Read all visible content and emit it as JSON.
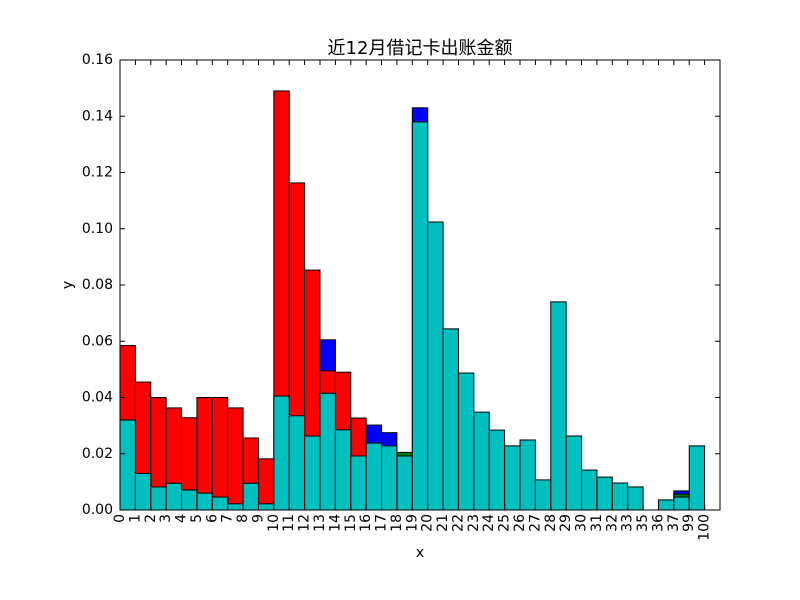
{
  "chart_data": {
    "type": "bar",
    "overlay": true,
    "stacked": false,
    "grid": false,
    "title": "近12月借记卡出账金额",
    "xlabel": "x",
    "ylabel": "y",
    "categories": [
      "0",
      "1",
      "2",
      "3",
      "4",
      "5",
      "6",
      "7",
      "8",
      "9",
      "10",
      "11",
      "12",
      "13",
      "14",
      "15",
      "16",
      "17",
      "18",
      "19",
      "20",
      "21",
      "22",
      "23",
      "24",
      "25",
      "26",
      "27",
      "28",
      "29",
      "30",
      "31",
      "32",
      "33",
      "35",
      "36",
      "37",
      "99",
      "100"
    ],
    "ylim": [
      0,
      0.16
    ],
    "yticks": [
      0,
      0.02,
      0.04,
      0.06,
      0.08,
      0.1,
      0.12,
      0.14,
      0.16
    ],
    "ytick_labels": [
      "0.00",
      "0.02",
      "0.04",
      "0.06",
      "0.08",
      "0.10",
      "0.12",
      "0.14",
      "0.16"
    ],
    "edge_color": "#000000",
    "series": [
      {
        "color": "#0000ff",
        "values": [
          null,
          null,
          null,
          null,
          null,
          null,
          null,
          null,
          null,
          null,
          null,
          null,
          null,
          0.0605,
          null,
          null,
          0.0302,
          0.0275,
          null,
          0.143,
          null,
          null,
          null,
          null,
          null,
          null,
          null,
          null,
          null,
          null,
          null,
          null,
          null,
          null,
          null,
          null,
          0.0068,
          null,
          null
        ]
      },
      {
        "color": "#008000",
        "values": [
          null,
          null,
          null,
          null,
          null,
          null,
          null,
          null,
          null,
          null,
          null,
          null,
          null,
          null,
          null,
          null,
          null,
          null,
          0.0205,
          null,
          null,
          null,
          null,
          null,
          null,
          null,
          null,
          null,
          null,
          null,
          null,
          null,
          null,
          null,
          null,
          null,
          0.0056,
          null,
          null
        ]
      },
      {
        "color": "#ff0000",
        "values": [
          0.0585,
          0.0455,
          0.04,
          0.0363,
          0.0328,
          0.04,
          0.04,
          0.0363,
          0.0256,
          0.0182,
          0.149,
          0.1163,
          0.0853,
          0.0495,
          0.049,
          0.0327,
          null,
          null,
          null,
          null,
          null,
          null,
          null,
          null,
          null,
          null,
          null,
          null,
          null,
          null,
          null,
          null,
          null,
          null,
          null,
          null,
          null,
          null,
          null
        ]
      },
      {
        "color": "#00bfbf",
        "values": [
          0.032,
          0.013,
          0.0082,
          0.0095,
          0.0071,
          0.006,
          0.0046,
          0.0022,
          0.0095,
          0.0022,
          0.0405,
          0.0335,
          0.0263,
          0.0415,
          0.0285,
          0.0192,
          0.0238,
          0.0228,
          0.0192,
          0.138,
          0.1024,
          0.0644,
          0.0487,
          0.0348,
          0.0284,
          0.0228,
          0.0249,
          0.0107,
          0.074,
          0.0263,
          0.0142,
          0.0117,
          0.0096,
          0.0082,
          0,
          0.0036,
          0.0046,
          0.0228,
          0
        ]
      }
    ]
  }
}
